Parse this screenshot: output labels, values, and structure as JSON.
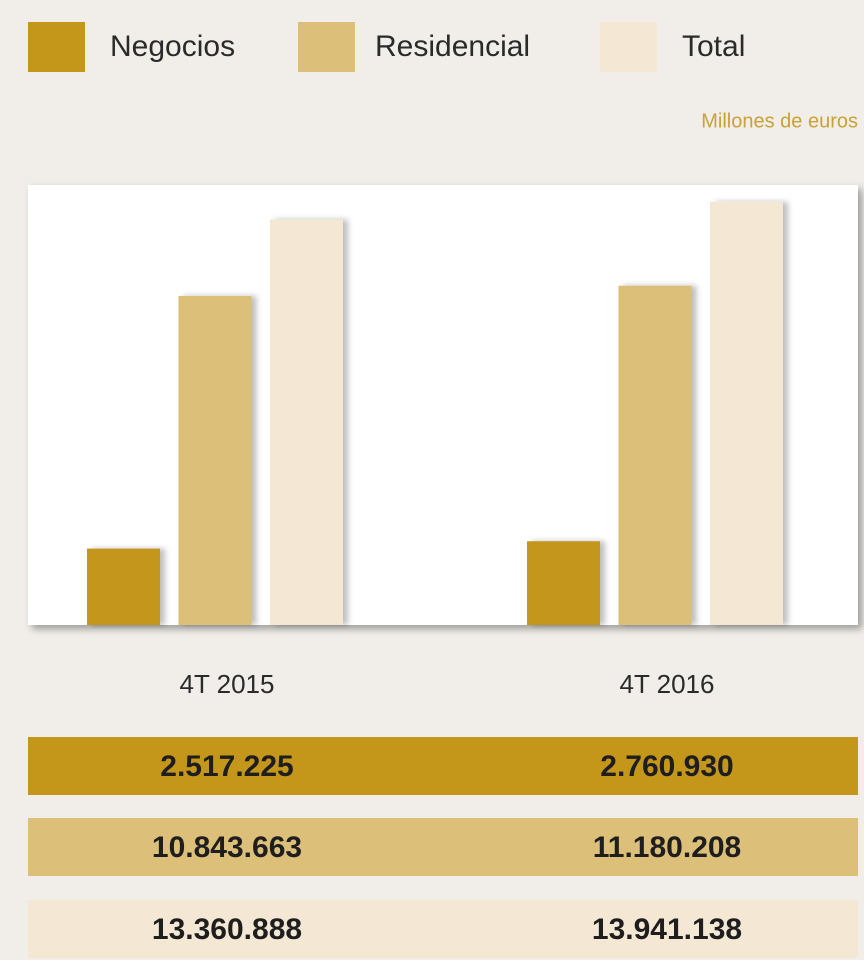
{
  "chart_data": {
    "type": "bar",
    "subtitle": "Millones de euros",
    "categories": [
      "4T 2015",
      "4T 2016"
    ],
    "series": [
      {
        "name": "Negocios",
        "color": "#c4961a",
        "values": [
          2517225,
          2760930
        ],
        "value_labels": [
          "2.517.225",
          "2.760.930"
        ]
      },
      {
        "name": "Residencial",
        "color": "#dcbf78",
        "values": [
          10843663,
          11180208
        ],
        "value_labels": [
          "10.843.663",
          "11.180.208"
        ]
      },
      {
        "name": "Total",
        "color": "#f4e8d4",
        "values": [
          13360888,
          13941138
        ],
        "value_labels": [
          "13.360.888",
          "13.941.138"
        ]
      }
    ],
    "ylim": [
      0,
      14500000
    ]
  }
}
